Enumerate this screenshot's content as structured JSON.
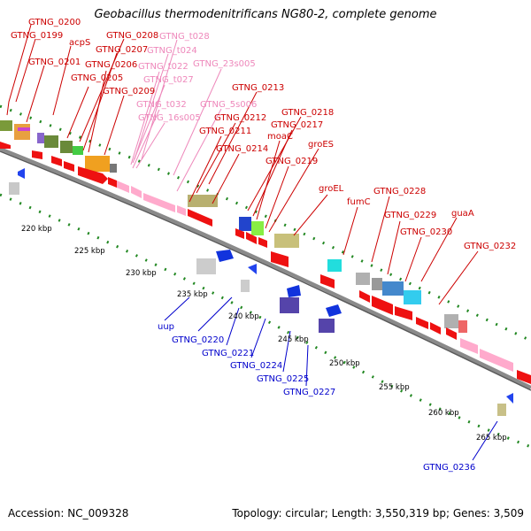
{
  "title": "Geobacillus thermodenitrificans NG80-2, complete genome",
  "footer": {
    "accession": "Accession: NC_009328",
    "summary": "Topology: circular; Length: 3,550,319 bp; Genes: 3,509"
  },
  "colors": {
    "forward_label": "#cc0000",
    "reverse_label": "#0000cc",
    "rna_label": "#ee88bb",
    "backbone": "#808080",
    "tick": "#228822"
  },
  "kbp_labels": [
    "220 kbp",
    "225 kbp",
    "230 kbp",
    "235 kbp",
    "240 kbp",
    "245 kbp",
    "250 kbp",
    "255 kbp",
    "260 kbp",
    "265 kbp"
  ],
  "forward_labels": [
    "GTNG_0200",
    "GTNG_0199",
    "acpS",
    "GTNG_0201",
    "GTNG_0208",
    "GTNG_0207",
    "GTNG_0206",
    "GTNG_0205",
    "GTNG_0209",
    "GTNG_0213",
    "GTNG_0218",
    "GTNG_0212",
    "GTNG_0217",
    "GTNG_0211",
    "moaC",
    "groES",
    "GTNG_0214",
    "GTNG_0219",
    "groEL",
    "fumC",
    "GTNG_0228",
    "GTNG_0229",
    "guaA",
    "GTNG_0230",
    "GTNG_0232"
  ],
  "rna_labels": [
    "GTNG_t028",
    "GTNG_t024",
    "GTNG_23s005",
    "GTNG_t022",
    "GTNG_t027",
    "GTNG_5s006",
    "GTNG_t032",
    "GTNG_16s005"
  ],
  "reverse_labels": [
    "uup",
    "GTNG_0220",
    "GTNG_0221",
    "GTNG_0224",
    "GTNG_0225",
    "GTNG_0227",
    "GTNG_0236"
  ]
}
